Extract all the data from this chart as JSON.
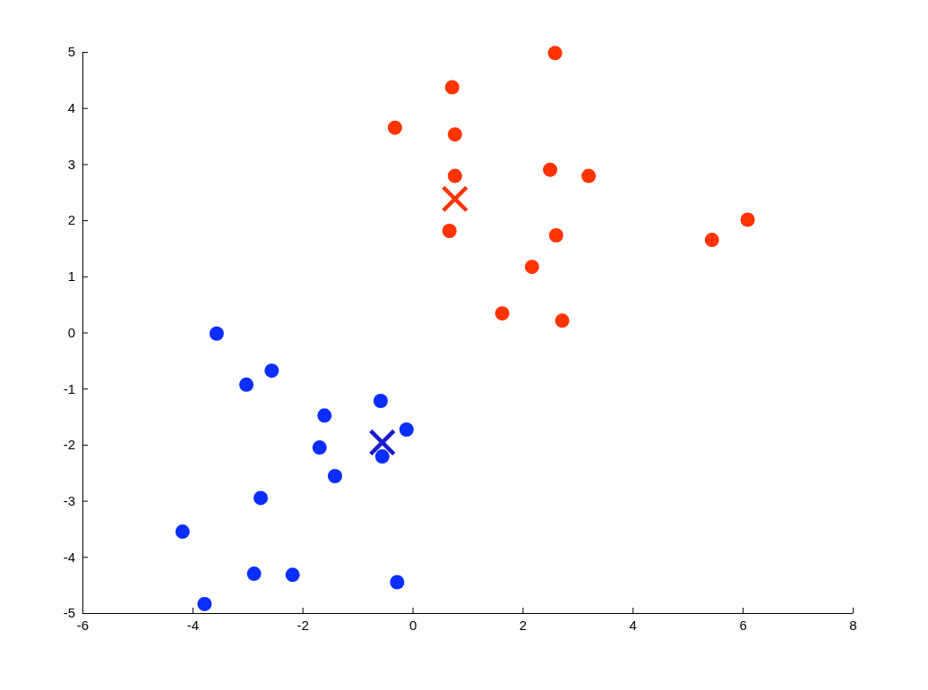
{
  "chart_data": {
    "type": "scatter",
    "xlim": [
      -6,
      8
    ],
    "ylim": [
      -5,
      5
    ],
    "xticks": [
      -6,
      -4,
      -2,
      0,
      2,
      4,
      6,
      8
    ],
    "yticks": [
      -5,
      -4,
      -3,
      -2,
      -1,
      0,
      1,
      2,
      3,
      4,
      5
    ],
    "grid": false,
    "series": [
      {
        "color": "#ff3300",
        "marker": "circle",
        "x": [
          2.59,
          0.72,
          -0.32,
          0.77,
          2.5,
          3.2,
          0.77,
          6.09,
          0.67,
          2.61,
          5.44,
          2.17,
          1.63,
          2.72
        ],
        "values": [
          4.98,
          4.37,
          3.65,
          3.53,
          2.9,
          2.79,
          2.79,
          2.01,
          1.81,
          1.73,
          1.65,
          1.17,
          0.34,
          0.21
        ]
      },
      {
        "color": "#0a2eff",
        "marker": "circle",
        "x": [
          -3.56,
          -2.56,
          -3.02,
          -0.58,
          -1.6,
          -0.11,
          -1.69,
          -0.55,
          -1.41,
          -2.76,
          -4.18,
          -2.88,
          -2.18,
          -0.28,
          -3.78
        ],
        "values": [
          -0.02,
          -0.68,
          -0.93,
          -1.22,
          -1.48,
          -1.73,
          -2.05,
          -2.21,
          -2.56,
          -2.95,
          -3.55,
          -4.3,
          -4.32,
          -4.45,
          -4.84
        ]
      },
      {
        "color": "#ff3300",
        "marker": "cross",
        "x": [
          0.77
        ],
        "values": [
          2.38
        ]
      },
      {
        "color": "#1a1ad0",
        "marker": "cross",
        "x": [
          -0.55
        ],
        "values": [
          -1.96
        ]
      }
    ]
  }
}
